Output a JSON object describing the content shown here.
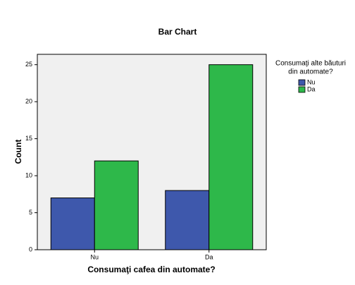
{
  "chart_data": {
    "type": "bar",
    "title": "Bar Chart",
    "x_label": "Consumaţi cafea din automate?",
    "y_label": "Count",
    "categories": [
      "Nu",
      "Da"
    ],
    "series": [
      {
        "name": "Nu",
        "color": "#3e58ac",
        "values": [
          7,
          8
        ]
      },
      {
        "name": "Da",
        "color": "#2eb84a",
        "values": [
          12,
          25
        ]
      }
    ],
    "legend_title": [
      "Consumaţi alte băuturi",
      "din automate?"
    ],
    "ylim": [
      0,
      26.4
    ],
    "yticks": [
      0,
      5,
      10,
      15,
      20,
      25
    ]
  }
}
